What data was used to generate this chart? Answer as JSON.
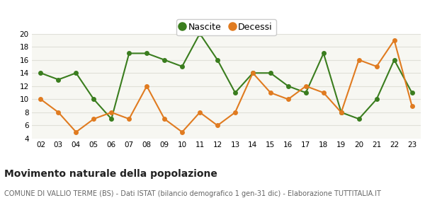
{
  "years": [
    "02",
    "03",
    "04",
    "05",
    "06",
    "07",
    "08",
    "09",
    "10",
    "11",
    "12",
    "13",
    "14",
    "15",
    "16",
    "17",
    "18",
    "19",
    "20",
    "21",
    "22",
    "23"
  ],
  "nascite": [
    14,
    13,
    14,
    10,
    7,
    17,
    17,
    16,
    15,
    20,
    16,
    11,
    14,
    14,
    12,
    11,
    17,
    8,
    7,
    10,
    16,
    11
  ],
  "decessi": [
    10,
    8,
    5,
    7,
    8,
    7,
    12,
    7,
    5,
    8,
    6,
    8,
    14,
    11,
    10,
    12,
    11,
    8,
    16,
    15,
    19,
    9
  ],
  "nascite_color": "#3a7d1e",
  "decessi_color": "#e07b20",
  "background_color": "#ffffff",
  "plot_bg_color": "#f7f7f2",
  "grid_color": "#e0e0d8",
  "ylim": [
    4,
    20
  ],
  "yticks": [
    4,
    6,
    8,
    10,
    12,
    14,
    16,
    18,
    20
  ],
  "title": "Movimento naturale della popolazione",
  "subtitle": "COMUNE DI VALLIO TERME (BS) - Dati ISTAT (bilancio demografico 1 gen-31 dic) - Elaborazione TUTTITALIA.IT",
  "legend_labels": [
    "Nascite",
    "Decessi"
  ],
  "title_fontsize": 10,
  "subtitle_fontsize": 7,
  "marker_size": 5,
  "linewidth": 1.5
}
